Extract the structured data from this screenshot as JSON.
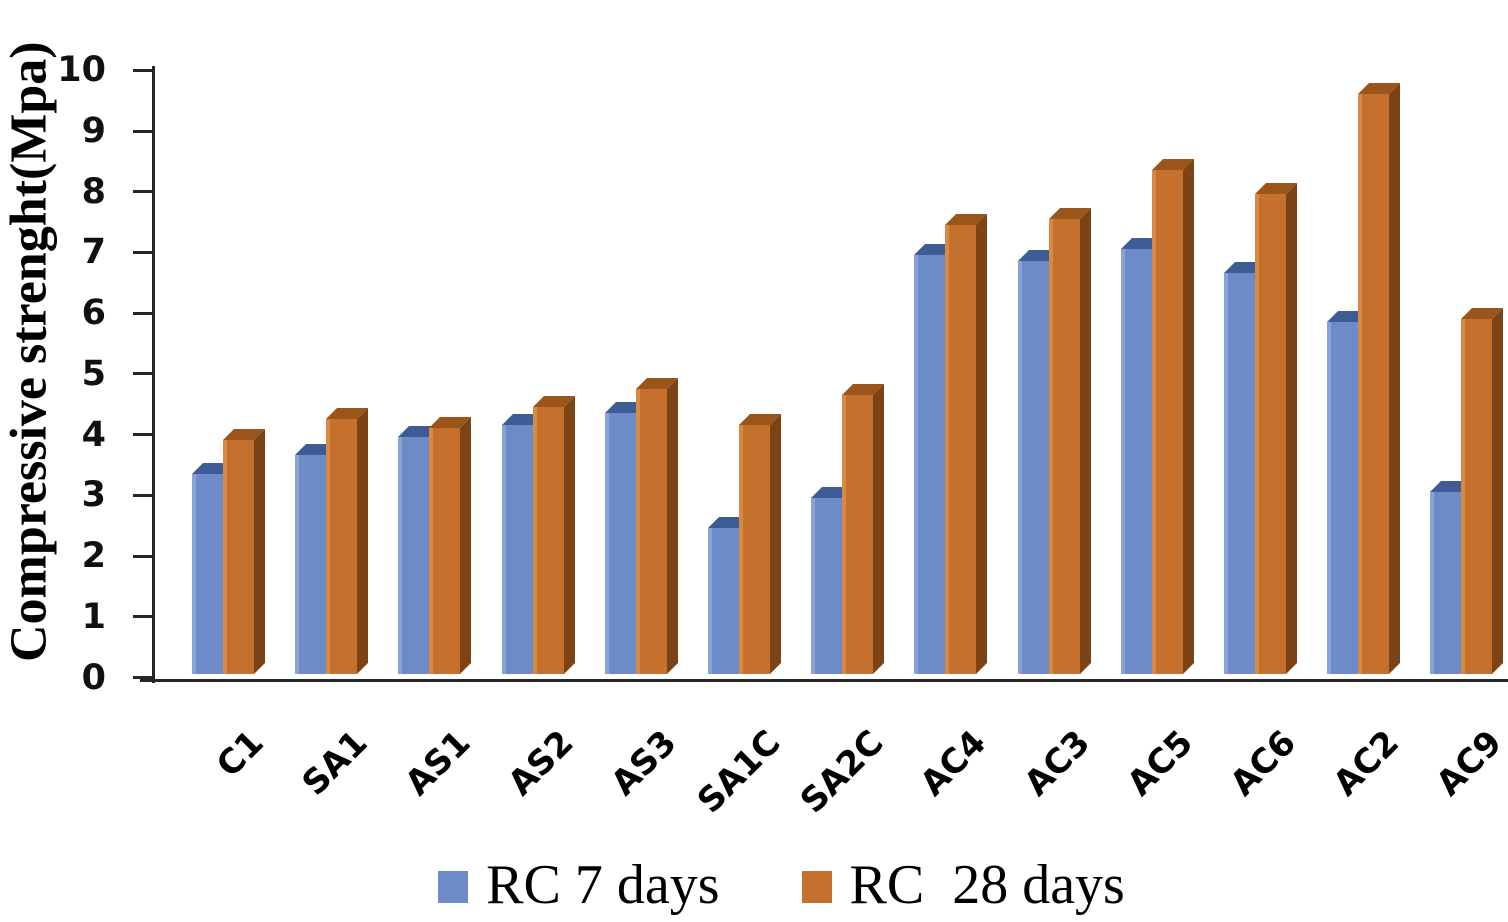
{
  "figure": {
    "background": "#ffffff",
    "axis_color": "#262626",
    "text_color": "#000000"
  },
  "chart_data": {
    "type": "bar",
    "title": "",
    "ylabel": "Compressive strenght(Mpa)",
    "xlabel": "",
    "ylim": [
      0,
      10
    ],
    "ytick_step": 1,
    "yticks": [
      0,
      1,
      2,
      3,
      4,
      5,
      6,
      7,
      8,
      9,
      10
    ],
    "grid": false,
    "legend_position": "bottom",
    "bar_style": "3d-extruded-clustered",
    "categories": [
      "C1",
      "SA1",
      "AS1",
      "AS2",
      "AS3",
      "SA1C",
      "SA2C",
      "AC4",
      "AC3",
      "AC5",
      "AC6",
      "AC2",
      "AC9"
    ],
    "series": [
      {
        "name": "RC 7 days",
        "color": "#6C8BC7",
        "color_light_edge": "#8AA2D5",
        "color_top": "#3D5C95",
        "color_side": "#35517F",
        "values": [
          3.3,
          3.6,
          3.9,
          4.1,
          4.3,
          2.4,
          2.9,
          6.9,
          6.8,
          7.0,
          6.6,
          5.8,
          3.0
        ]
      },
      {
        "name": "RC  28 days",
        "color": "#C5702D",
        "color_light_edge": "#D88A44",
        "color_top": "#9A551B",
        "color_side": "#7C4316",
        "values": [
          3.85,
          4.2,
          4.05,
          4.4,
          4.7,
          4.1,
          4.6,
          7.4,
          7.5,
          8.3,
          7.9,
          9.55,
          5.85
        ]
      }
    ]
  }
}
